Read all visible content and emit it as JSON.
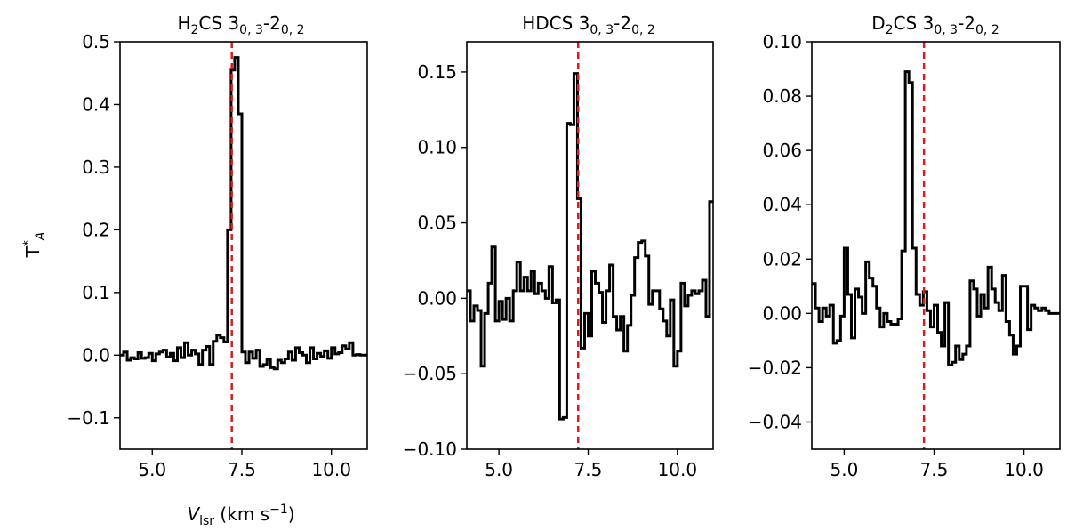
{
  "figure": {
    "ylabel": "T*A",
    "xlabel": "Vlsr (km s−1)"
  },
  "chart_data": [
    {
      "type": "line",
      "style": "step",
      "title": "H2CS 30,3-20,2",
      "xlim": [
        4.1,
        11.0
      ],
      "ylim": [
        -0.15,
        0.5
      ],
      "xticks": [
        "5.0",
        "7.5",
        "10.0"
      ],
      "xtick_values": [
        5.0,
        7.5,
        10.0
      ],
      "yticks": [
        "−0.1",
        "0.0",
        "0.1",
        "0.2",
        "0.3",
        "0.4",
        "0.5"
      ],
      "ytick_values": [
        -0.1,
        0.0,
        0.1,
        0.2,
        0.3,
        0.4,
        0.5
      ],
      "vline": {
        "x": 7.22,
        "color": "#e31a1c",
        "style": "dashed"
      },
      "line_color": "#000000",
      "series": [
        {
          "x": [
            4.1,
            4.2,
            4.3,
            4.4,
            4.5,
            4.6,
            4.7,
            4.8,
            4.9,
            5.0,
            5.1,
            5.2,
            5.3,
            5.4,
            5.5,
            5.6,
            5.7,
            5.8,
            5.9,
            6.0,
            6.1,
            6.2,
            6.3,
            6.4,
            6.5,
            6.6,
            6.7,
            6.8,
            6.9,
            7.0,
            7.1,
            7.2,
            7.3,
            7.4,
            7.5,
            7.6,
            7.7,
            7.8,
            7.9,
            8.0,
            8.1,
            8.2,
            8.3,
            8.4,
            8.5,
            8.6,
            8.7,
            8.8,
            8.9,
            9.0,
            9.1,
            9.2,
            9.3,
            9.4,
            9.5,
            9.6,
            9.7,
            9.8,
            9.9,
            10.0,
            10.1,
            10.2,
            10.3,
            10.4,
            10.5,
            10.6,
            10.7,
            10.8,
            10.9,
            11.0
          ],
          "y": [
            0.0,
            0.005,
            -0.008,
            -0.004,
            -0.006,
            0.004,
            -0.005,
            -0.004,
            0.003,
            -0.009,
            0.002,
            0.005,
            0.008,
            -0.003,
            0.003,
            -0.009,
            0.012,
            -0.004,
            0.02,
            0.0,
            0.008,
            0.002,
            -0.015,
            0.008,
            0.014,
            -0.015,
            0.022,
            0.032,
            0.028,
            0.021,
            0.2,
            0.455,
            0.475,
            0.385,
            0.005,
            -0.012,
            0.005,
            -0.005,
            0.008,
            -0.018,
            -0.015,
            -0.007,
            -0.02,
            -0.022,
            -0.008,
            -0.012,
            -0.006,
            0.005,
            -0.008,
            0.012,
            0.004,
            0.0,
            -0.012,
            0.012,
            -0.006,
            0.003,
            -0.002,
            0.007,
            -0.005,
            0.012,
            0.002,
            0.004,
            0.015,
            0.01,
            0.02,
            0.0,
            0.001,
            0.0,
            0.0,
            0.0
          ]
        }
      ]
    },
    {
      "type": "line",
      "style": "step",
      "title": "HDCS 30,3-20,2",
      "xlim": [
        4.1,
        11.0
      ],
      "ylim": [
        -0.1,
        0.17
      ],
      "xticks": [
        "5.0",
        "7.5",
        "10.0"
      ],
      "xtick_values": [
        5.0,
        7.5,
        10.0
      ],
      "yticks": [
        "−0.10",
        "−0.05",
        "0.00",
        "0.05",
        "0.10",
        "0.15"
      ],
      "ytick_values": [
        -0.1,
        -0.05,
        0.0,
        0.05,
        0.1,
        0.15
      ],
      "vline": {
        "x": 7.22,
        "color": "#e31a1c",
        "style": "dashed"
      },
      "line_color": "#000000",
      "series": [
        {
          "x": [
            4.1,
            4.2,
            4.3,
            4.4,
            4.5,
            4.6,
            4.7,
            4.8,
            4.9,
            5.0,
            5.1,
            5.2,
            5.3,
            5.4,
            5.5,
            5.6,
            5.7,
            5.8,
            5.9,
            6.0,
            6.1,
            6.2,
            6.3,
            6.4,
            6.5,
            6.6,
            6.7,
            6.8,
            6.9,
            7.0,
            7.1,
            7.2,
            7.3,
            7.4,
            7.5,
            7.6,
            7.7,
            7.8,
            7.9,
            8.0,
            8.1,
            8.2,
            8.3,
            8.4,
            8.5,
            8.6,
            8.7,
            8.8,
            8.9,
            9.0,
            9.1,
            9.2,
            9.3,
            9.4,
            9.5,
            9.6,
            9.7,
            9.8,
            9.9,
            10.0,
            10.1,
            10.2,
            10.3,
            10.4,
            10.5,
            10.6,
            10.7,
            10.8,
            10.9,
            11.0
          ],
          "y": [
            0.005,
            -0.015,
            -0.005,
            -0.008,
            -0.045,
            -0.01,
            0.01,
            0.034,
            -0.015,
            -0.002,
            -0.014,
            0.0,
            -0.015,
            0.005,
            0.024,
            0.005,
            0.014,
            0.005,
            0.018,
            0.003,
            0.01,
            0.005,
            0.0,
            0.021,
            -0.003,
            -0.001,
            -0.08,
            -0.079,
            0.116,
            0.115,
            0.149,
            0.066,
            -0.033,
            -0.01,
            -0.025,
            0.018,
            0.01,
            0.004,
            -0.016,
            0.005,
            0.022,
            -0.012,
            -0.021,
            -0.012,
            -0.035,
            -0.018,
            0.002,
            0.027,
            0.037,
            0.038,
            0.028,
            -0.004,
            0.005,
            0.005,
            -0.007,
            -0.015,
            -0.025,
            -0.001,
            -0.045,
            -0.035,
            0.01,
            -0.005,
            0.002,
            0.005,
            0.003,
            0.005,
            0.012,
            -0.012,
            0.064,
            0.064
          ]
        }
      ]
    },
    {
      "type": "line",
      "style": "step",
      "title": "D2CS 30,3-20,2",
      "xlim": [
        4.1,
        11.0
      ],
      "ylim": [
        -0.05,
        0.1
      ],
      "xticks": [
        "5.0",
        "7.5",
        "10.0"
      ],
      "xtick_values": [
        5.0,
        7.5,
        10.0
      ],
      "yticks": [
        "−0.04",
        "−0.02",
        "0.00",
        "0.02",
        "0.04",
        "0.06",
        "0.08",
        "0.10"
      ],
      "ytick_values": [
        -0.04,
        -0.02,
        0.0,
        0.02,
        0.04,
        0.06,
        0.08,
        0.1
      ],
      "vline": {
        "x": 7.22,
        "color": "#e31a1c",
        "style": "dashed"
      },
      "line_color": "#000000",
      "series": [
        {
          "x": [
            4.1,
            4.2,
            4.3,
            4.4,
            4.5,
            4.6,
            4.7,
            4.8,
            4.9,
            5.0,
            5.1,
            5.2,
            5.3,
            5.4,
            5.5,
            5.6,
            5.7,
            5.8,
            5.9,
            6.0,
            6.1,
            6.2,
            6.3,
            6.4,
            6.5,
            6.6,
            6.7,
            6.8,
            6.9,
            7.0,
            7.1,
            7.2,
            7.3,
            7.4,
            7.5,
            7.6,
            7.7,
            7.8,
            7.9,
            8.0,
            8.1,
            8.2,
            8.3,
            8.4,
            8.5,
            8.6,
            8.7,
            8.8,
            8.9,
            9.0,
            9.1,
            9.2,
            9.3,
            9.4,
            9.5,
            9.6,
            9.7,
            9.8,
            9.9,
            10.0,
            10.1,
            10.2,
            10.3,
            10.4,
            10.5,
            10.6,
            10.7,
            10.8,
            10.9,
            11.0
          ],
          "y": [
            0.011,
            0.002,
            -0.003,
            0.002,
            -0.001,
            0.003,
            -0.011,
            -0.01,
            -0.001,
            0.024,
            0.007,
            -0.009,
            0.009,
            0.006,
            0.0,
            0.019,
            0.013,
            0.01,
            0.002,
            -0.005,
            0.0,
            -0.003,
            -0.004,
            -0.004,
            -0.002,
            0.023,
            0.089,
            0.085,
            0.024,
            0.007,
            0.003,
            0.008,
            0.001,
            -0.005,
            0.003,
            -0.007,
            -0.012,
            0.004,
            -0.019,
            -0.018,
            -0.012,
            -0.017,
            -0.015,
            -0.012,
            0.012,
            0.009,
            -0.001,
            0.007,
            0.002,
            0.017,
            0.009,
            0.004,
            0.001,
            0.014,
            -0.003,
            -0.008,
            -0.015,
            -0.012,
            0.01,
            0.01,
            -0.006,
            0.003,
            0.002,
            0.001,
            0.002,
            0.001,
            0.0,
            0.0,
            0.0,
            0.0
          ]
        }
      ]
    }
  ]
}
